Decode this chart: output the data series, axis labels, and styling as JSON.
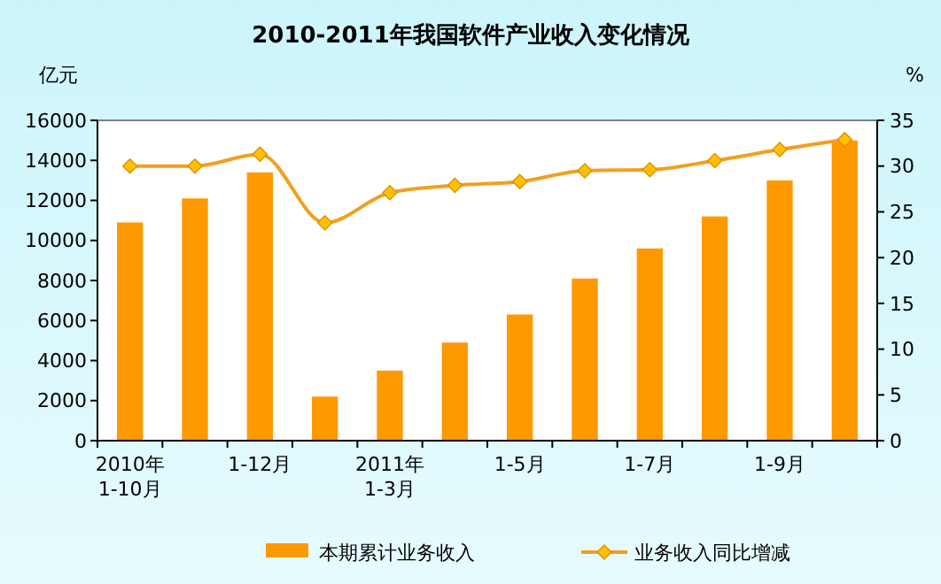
{
  "chart_data": {
    "type": "bar",
    "title": "2010-2011年我国软件产业收入变化情况",
    "ylabel": "亿元",
    "y2label": "%",
    "categories": [
      "2010年\n1-10月",
      null,
      "1-12月",
      null,
      "2011年\n1-3月",
      null,
      "1-5月",
      null,
      "1-7月",
      null,
      "1-9月",
      null
    ],
    "series": [
      {
        "name": "本期累计业务收入",
        "color": "#ff9900",
        "values": [
          10900,
          12100,
          13400,
          2200,
          3500,
          4900,
          6300,
          8100,
          9600,
          11200,
          13000,
          15000
        ]
      },
      {
        "name": "业务收入同比增减",
        "type": "line",
        "axis": "y2",
        "color": "#f0a020",
        "marker": "diamond",
        "values": [
          30.0,
          30.0,
          31.3,
          23.8,
          27.1,
          27.9,
          28.3,
          29.5,
          29.6,
          30.6,
          31.8,
          32.9
        ]
      }
    ],
    "ylim": [
      0,
      16000
    ],
    "yticks": [
      0,
      2000,
      4000,
      6000,
      8000,
      10000,
      12000,
      14000,
      16000
    ],
    "y2lim": [
      0,
      35
    ],
    "y2ticks": [
      0,
      5,
      10,
      15,
      20,
      25,
      30,
      35
    ],
    "legend": "bottom",
    "grid": false
  }
}
